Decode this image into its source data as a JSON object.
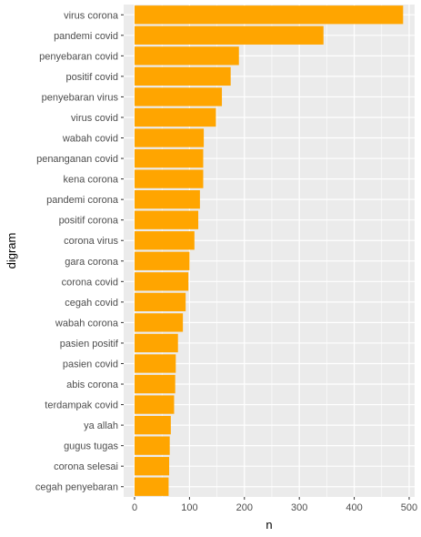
{
  "chart_data": {
    "type": "bar",
    "orientation": "horizontal",
    "title": "",
    "xlabel": "n",
    "ylabel": "digram",
    "xlim": [
      0,
      510
    ],
    "x_ticks": [
      0,
      100,
      200,
      300,
      400,
      500
    ],
    "grid": true,
    "legend": "none",
    "bar_color": "#FFA500",
    "panel_color": "#EBEBEB",
    "categories": [
      "virus corona",
      "pandemi covid",
      "penyebaran covid",
      "positif covid",
      "penyebaran virus",
      "virus covid",
      "wabah covid",
      "penanganan covid",
      "kena corona",
      "pandemi corona",
      "positif corona",
      "corona virus",
      "gara corona",
      "corona covid",
      "cegah covid",
      "wabah corona",
      "pasien positif",
      "pasien covid",
      "abis corona",
      "terdampak covid",
      "ya allah",
      "gugus tugas",
      "corona selesai",
      "cegah penyebaran"
    ],
    "values": [
      489,
      344,
      190,
      175,
      159,
      148,
      126,
      125,
      125,
      119,
      116,
      109,
      100,
      98,
      93,
      88,
      79,
      75,
      74,
      72,
      66,
      64,
      63,
      62
    ]
  }
}
